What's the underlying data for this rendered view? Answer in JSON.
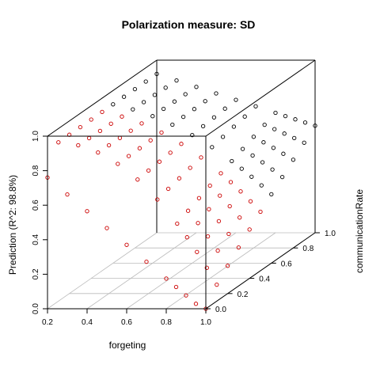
{
  "chart_data": {
    "type": "scatter",
    "title": "Polarization measure: SD",
    "xlabel": "forgeting",
    "ylabel": "communicationRate",
    "zlabel": "Prediction (R^2: 98.8%)",
    "x_ticks": [
      "0.2",
      "0.4",
      "0.6",
      "0.8",
      "1.0"
    ],
    "y_ticks": [
      "0.0",
      "0.2",
      "0.4",
      "0.6",
      "0.8",
      "1.0"
    ],
    "z_ticks": [
      "0.0",
      "0.2",
      "0.4",
      "0.6",
      "0.8",
      "1.0"
    ],
    "xlim": [
      0.2,
      1.0
    ],
    "ylim": [
      0.0,
      1.0
    ],
    "zlim": [
      0.0,
      1.0
    ],
    "grid_on_floor": true,
    "box": true,
    "point_colors": {
      "near": "#cc0000",
      "far": "#000000"
    },
    "model": "Prediction is high (about 0.5 to 0.95) for low forgeting or high communicationRate, and drops toward 0 as forgeting approaches 1.0 when communicationRate is low.",
    "series": [
      {
        "name": "",
        "grid_x": [
          0.2,
          0.3,
          0.4,
          0.5,
          0.6,
          0.7,
          0.8,
          0.85,
          0.9,
          0.95,
          1.0
        ],
        "grid_y": [
          0.0,
          0.1,
          0.2,
          0.3,
          0.4,
          0.5,
          0.6,
          0.7,
          0.8,
          0.9,
          1.0
        ]
      }
    ]
  }
}
